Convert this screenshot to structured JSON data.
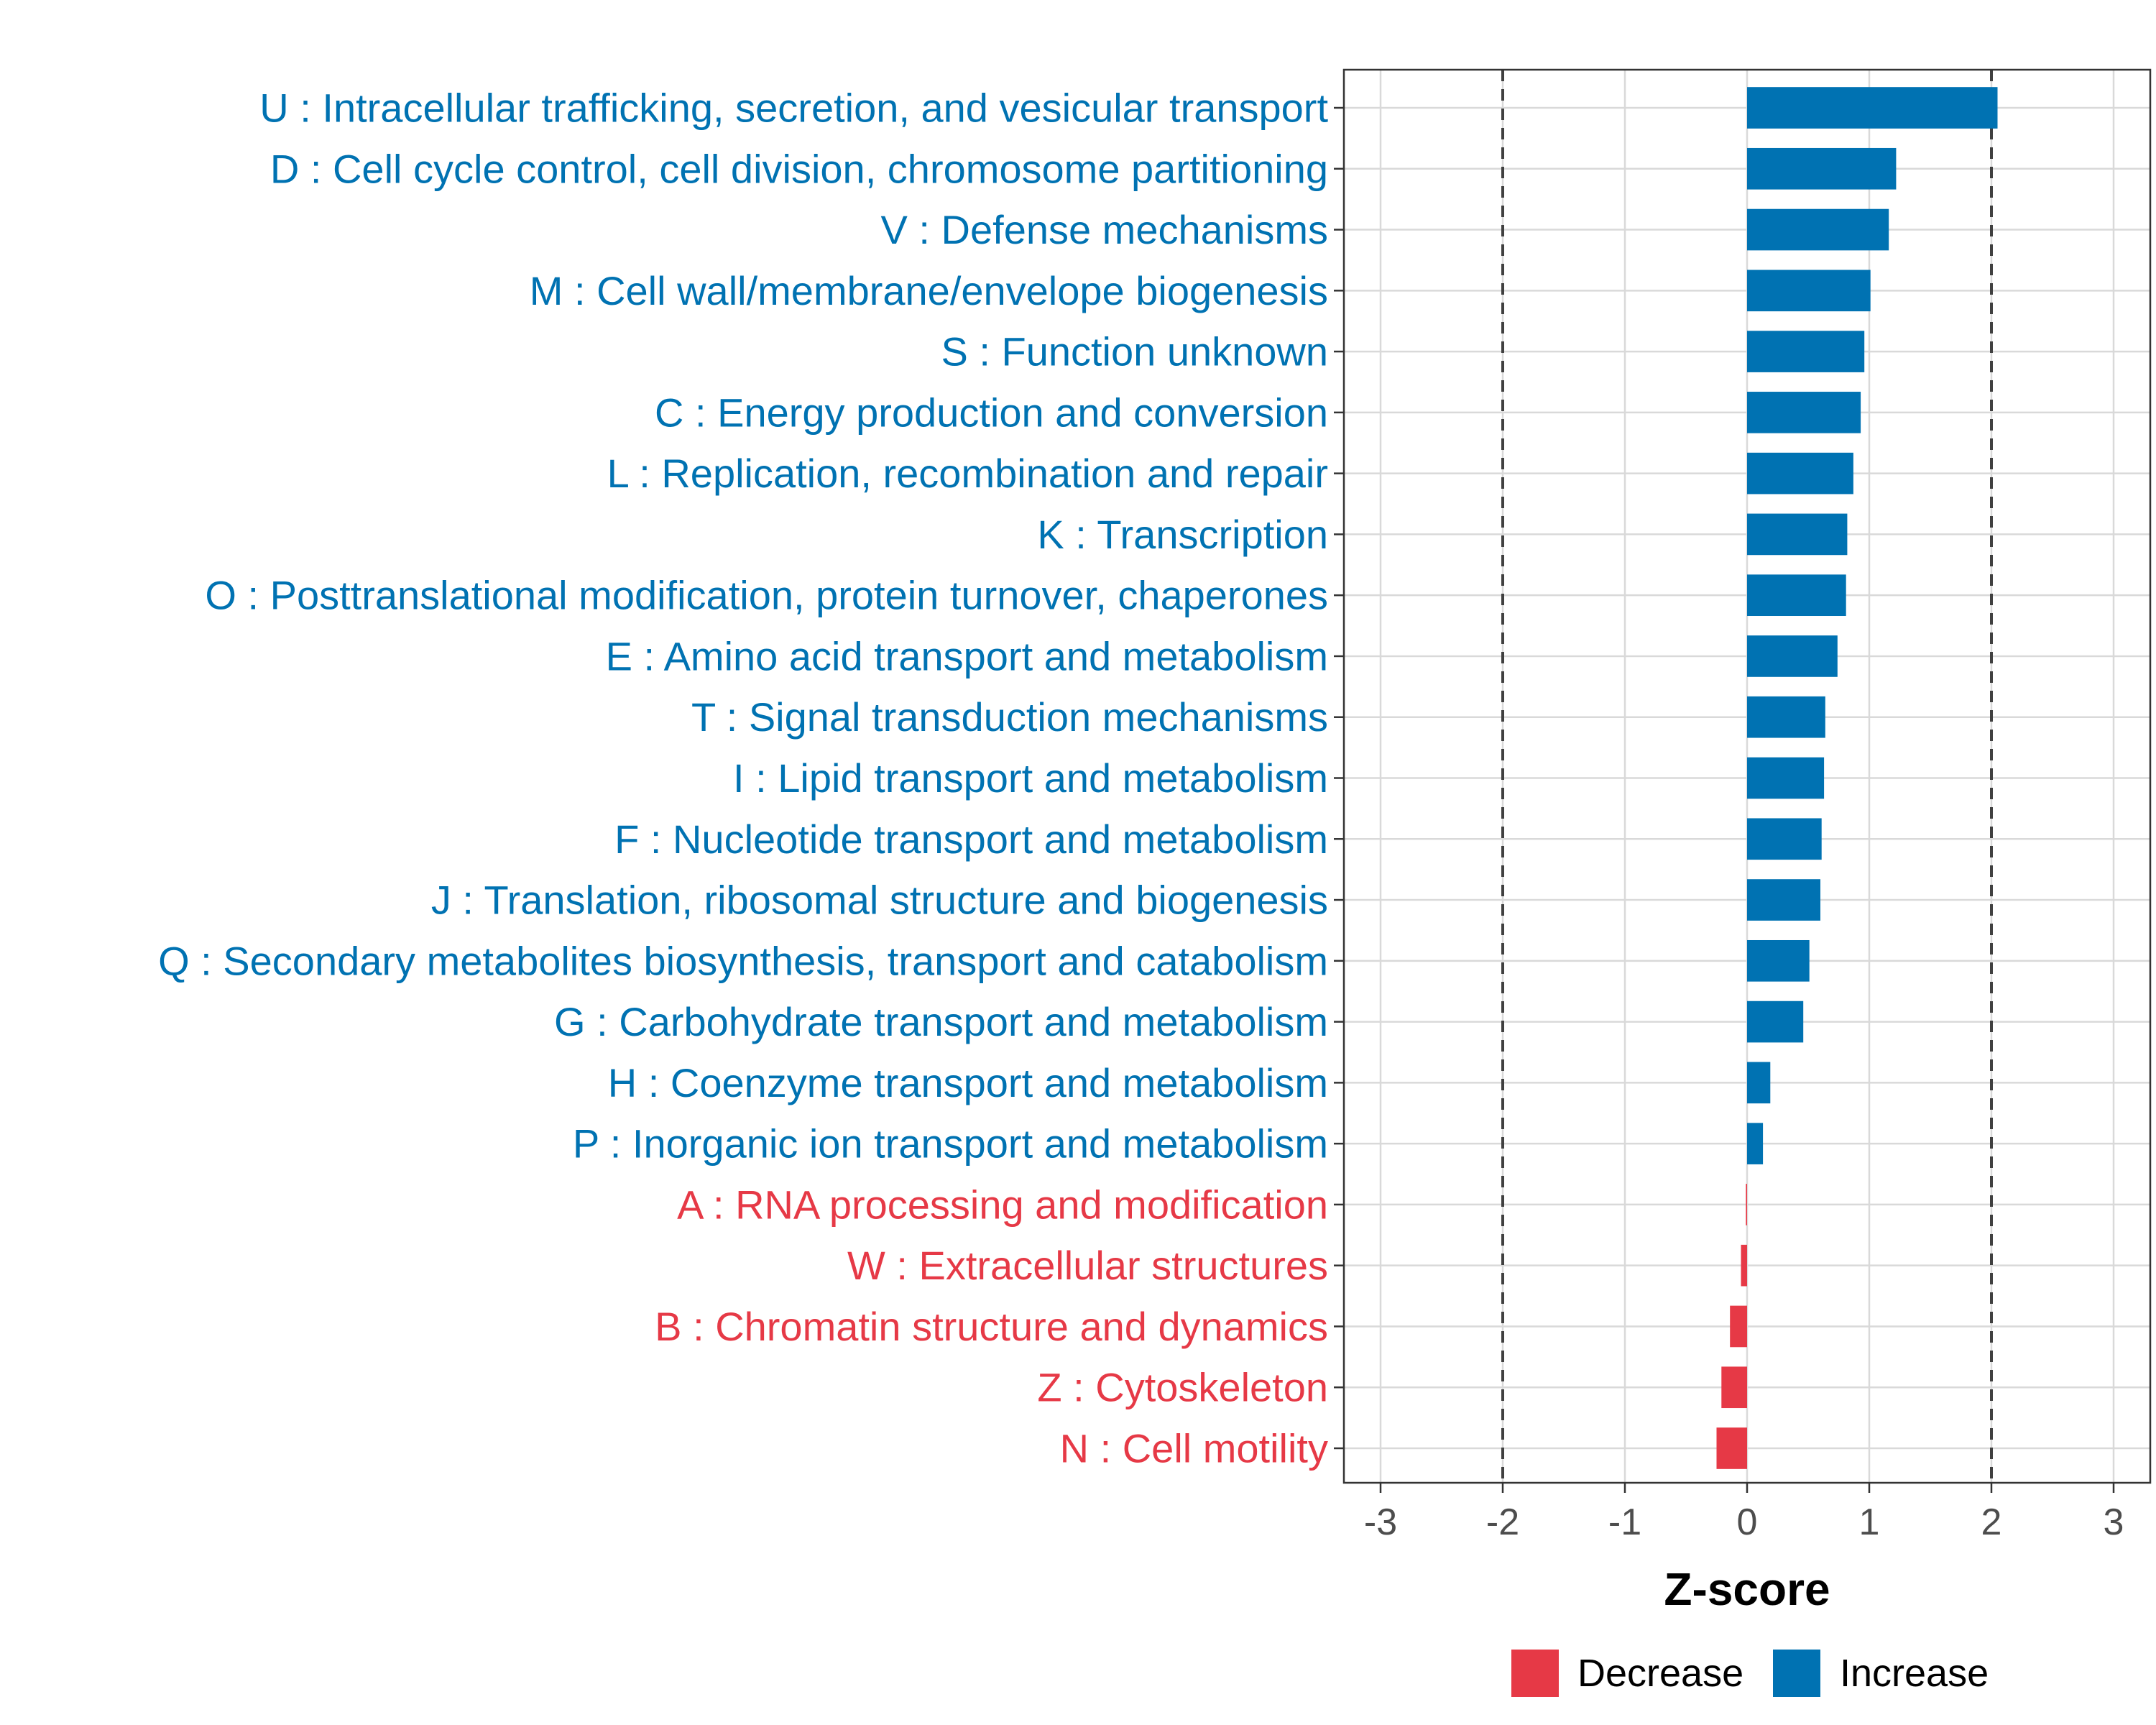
{
  "chart_data": {
    "type": "bar",
    "orientation": "horizontal",
    "xlabel": "Z-score",
    "xlim": [
      -3.3,
      3.3
    ],
    "xticks": [
      -3,
      -2,
      -1,
      0,
      1,
      2,
      3
    ],
    "xtick_labels": [
      "-3",
      "-2",
      "-1",
      "0",
      "1",
      "2",
      "3"
    ],
    "reference_lines": [
      -2,
      2
    ],
    "grid": true,
    "colors": {
      "Increase": "#0072b2",
      "Decrease": "#e63946"
    },
    "legend": {
      "position": "bottom",
      "entries": [
        {
          "name": "Decrease",
          "color": "#e63946"
        },
        {
          "name": "Increase",
          "color": "#0072b2"
        }
      ]
    },
    "categories": [
      "U : Intracellular trafficking, secretion, and vesicular transport",
      "D : Cell cycle control, cell division, chromosome partitioning",
      "V : Defense mechanisms",
      "M : Cell wall/membrane/envelope biogenesis",
      "S : Function unknown",
      "C : Energy production and conversion",
      "L : Replication, recombination and repair",
      "K : Transcription",
      "O : Posttranslational modification, protein turnover, chaperones",
      "E : Amino acid transport and metabolism",
      "T : Signal transduction mechanisms",
      "I : Lipid transport and metabolism",
      "F : Nucleotide transport and metabolism",
      "J : Translation, ribosomal structure and biogenesis",
      "Q : Secondary metabolites biosynthesis, transport and catabolism",
      "G : Carbohydrate transport and metabolism",
      "H : Coenzyme transport and metabolism",
      "P : Inorganic ion transport and metabolism",
      "A : RNA processing and modification",
      "W : Extracellular structures",
      "B : Chromatin structure and dynamics",
      "Z : Cytoskeleton",
      "N : Cell motility"
    ],
    "values": [
      2.05,
      1.22,
      1.16,
      1.01,
      0.96,
      0.93,
      0.87,
      0.82,
      0.81,
      0.74,
      0.64,
      0.63,
      0.61,
      0.6,
      0.51,
      0.46,
      0.19,
      0.13,
      -0.01,
      -0.05,
      -0.14,
      -0.21,
      -0.25
    ],
    "groups": [
      "Increase",
      "Increase",
      "Increase",
      "Increase",
      "Increase",
      "Increase",
      "Increase",
      "Increase",
      "Increase",
      "Increase",
      "Increase",
      "Increase",
      "Increase",
      "Increase",
      "Increase",
      "Increase",
      "Increase",
      "Increase",
      "Decrease",
      "Decrease",
      "Decrease",
      "Decrease",
      "Decrease"
    ]
  }
}
